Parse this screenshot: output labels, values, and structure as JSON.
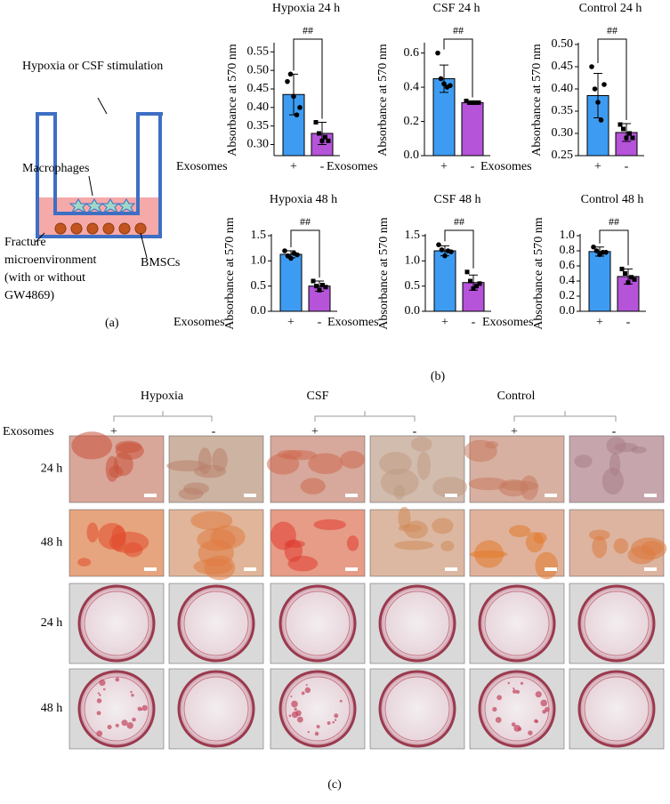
{
  "diagram": {
    "stimulation_label": "Hypoxia or CSF stimulation",
    "macrophages_label": "Macrophages",
    "fracture_label": [
      "Fracture",
      "microenvironment",
      "(with or without",
      "GW4869)"
    ],
    "bmsc_label": "BMSCs",
    "panel_label": "(a)"
  },
  "chart_panel_label": "(b)",
  "chart_data": [
    {
      "type": "bar",
      "title": "Hypoxia 24 h",
      "y_label": "Absorbance at 570 nm",
      "x_label": "Exosomes",
      "categories": [
        "+",
        "-"
      ],
      "values": [
        0.435,
        0.33
      ],
      "errors": [
        0.055,
        0.03
      ],
      "points": [
        [
          0.47,
          0.49,
          0.43,
          0.38,
          0.4
        ],
        [
          0.36,
          0.33,
          0.31,
          0.32,
          0.31
        ]
      ],
      "colors": [
        "#3d9cf2",
        "#b553d9"
      ],
      "significance": "##",
      "ylim": [
        0.27,
        0.57
      ],
      "yticks": [
        {
          "value": 0.3,
          "label": "0.30"
        },
        0.35,
        {
          "value": 0.4,
          "label": "0.40"
        },
        0.45,
        {
          "value": 0.5,
          "label": "0.50"
        },
        0.55
      ]
    },
    {
      "type": "bar",
      "title": "CSF 24 h",
      "y_label": "Absorbance at 570 nm",
      "x_label": "Exosomes",
      "categories": [
        "+",
        "-"
      ],
      "values": [
        0.45,
        0.31
      ],
      "errors": [
        0.08,
        0.01
      ],
      "points": [
        [
          0.6,
          0.45,
          0.42,
          0.4,
          0.41
        ],
        [
          0.32,
          0.31,
          0.31,
          0.31,
          0.31
        ]
      ],
      "colors": [
        "#3d9cf2",
        "#b553d9"
      ],
      "significance": "##",
      "ylim": [
        0,
        0.65
      ],
      "yticks": [
        {
          "value": 0,
          "label": "0.0"
        },
        0.2,
        0.4,
        0.6
      ]
    },
    {
      "type": "bar",
      "title": "Control 24 h",
      "y_label": "Absorbance at 570 nm",
      "x_label": "Exosomes",
      "categories": [
        "+",
        "-"
      ],
      "values": [
        0.385,
        0.302
      ],
      "errors": [
        0.05,
        0.02
      ],
      "points": [
        [
          0.45,
          0.4,
          0.37,
          0.33,
          0.41
        ],
        [
          0.32,
          0.31,
          0.29,
          0.3,
          0.29
        ]
      ],
      "colors": [
        "#3d9cf2",
        "#b553d9"
      ],
      "significance": "##",
      "ylim": [
        0.25,
        0.5
      ],
      "yticks": [
        0.25,
        {
          "value": 0.3,
          "label": "0.30"
        },
        0.35,
        {
          "value": 0.4,
          "label": "0.40"
        },
        0.45,
        {
          "value": 0.5,
          "label": "0.50"
        }
      ]
    },
    {
      "type": "bar",
      "title": "Hypoxia 48 h",
      "y_label": "Absorbance at 570 nm",
      "x_label": "Exosomes",
      "categories": [
        "+",
        "-"
      ],
      "values": [
        1.13,
        0.5
      ],
      "errors": [
        0.07,
        0.1
      ],
      "points": [
        [
          1.2,
          1.1,
          1.05,
          1.15,
          1.12
        ],
        [
          0.6,
          0.5,
          0.42,
          0.52,
          0.48
        ]
      ],
      "colors": [
        "#3d9cf2",
        "#b553d9"
      ],
      "significance": "##",
      "ylim": [
        0,
        1.5
      ],
      "yticks": [
        {
          "value": 0,
          "label": "0.0"
        },
        0.5,
        {
          "value": 1,
          "label": "1.0"
        },
        1.5
      ]
    },
    {
      "type": "bar",
      "title": "CSF 48 h",
      "y_label": "Absorbance at 570 nm",
      "x_label": "Exosomes",
      "categories": [
        "+",
        "-"
      ],
      "values": [
        1.2,
        0.57
      ],
      "errors": [
        0.1,
        0.15
      ],
      "points": [
        [
          1.32,
          1.22,
          1.1,
          1.2,
          1.18
        ],
        [
          0.78,
          0.6,
          0.45,
          0.5,
          0.55
        ]
      ],
      "colors": [
        "#3d9cf2",
        "#b553d9"
      ],
      "significance": "##",
      "ylim": [
        0,
        1.5
      ],
      "yticks": [
        {
          "value": 0,
          "label": "0.0"
        },
        0.5,
        {
          "value": 1,
          "label": "1.0"
        },
        1.5
      ]
    },
    {
      "type": "bar",
      "title": "Control 48 h",
      "y_label": "Absorbance at 570 nm",
      "x_label": "Exosomes",
      "categories": [
        "+",
        "-"
      ],
      "values": [
        0.79,
        0.46
      ],
      "errors": [
        0.06,
        0.1
      ],
      "points": [
        [
          0.85,
          0.8,
          0.75,
          0.78,
          0.78
        ],
        [
          0.56,
          0.5,
          0.38,
          0.45,
          0.42
        ]
      ],
      "colors": [
        "#3d9cf2",
        "#b553d9"
      ],
      "significance": "##",
      "ylim": [
        0,
        1.0
      ],
      "yticks": [
        {
          "value": 0,
          "label": "0.0"
        },
        0.2,
        0.4,
        0.6,
        0.8,
        {
          "value": 1,
          "label": "1.0"
        }
      ]
    }
  ],
  "images": {
    "groups": [
      "Hypoxia",
      "CSF",
      "Control"
    ],
    "exosomes_label": "Exosomes",
    "columns": [
      "+",
      "-",
      "+",
      "-",
      "+",
      "-"
    ],
    "rows": [
      "24 h",
      "48 h",
      "24 h",
      "48 h"
    ],
    "panel_label": "(c)"
  }
}
